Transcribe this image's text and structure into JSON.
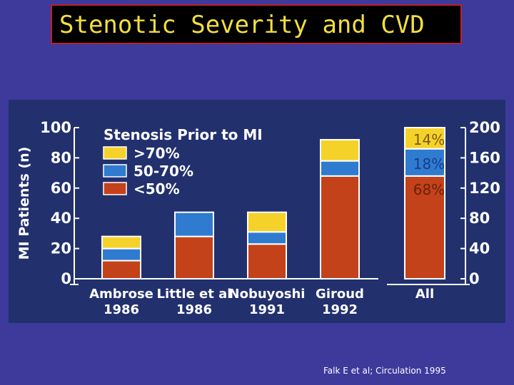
{
  "slide": {
    "title": "Stenotic Severity and CVD",
    "citation": "Falk E et al;  Circulation 1995"
  },
  "colors": {
    "background": "#3d3a9c",
    "title_text": "#f2df3e",
    "title_border": "#c0202c",
    "panel": "#22306e",
    "severe": "#f5d22a",
    "moderate": "#2f7bd0",
    "mild": "#c4421a"
  },
  "chart_data": {
    "type": "bar",
    "stacked": true,
    "ylabel": "MI Patients (n)",
    "ylim": [
      0,
      100
    ],
    "yticks": [
      "0",
      "20",
      "40",
      "60",
      "80",
      "100"
    ],
    "y2lim": [
      0,
      200
    ],
    "y2ticks": [
      "0",
      "40",
      "80",
      "120",
      "160",
      "200"
    ],
    "legend_title": "Stenosis Prior to MI",
    "legend_placement": "top-left",
    "categories": [
      [
        "Ambrose",
        "1986"
      ],
      [
        "Little et al",
        "1986"
      ],
      [
        "Nobuyoshi",
        "1991"
      ],
      [
        "Giroud",
        "1992"
      ]
    ],
    "series": [
      {
        "name": "<50%",
        "color": "#c4421a",
        "values": [
          12,
          28,
          23,
          68
        ]
      },
      {
        "name": "50-70%",
        "color": "#2f7bd0",
        "values": [
          8,
          16,
          8,
          10
        ]
      },
      {
        "name": ">70%",
        "color": "#f5d22a",
        "values": [
          8,
          0,
          13,
          14
        ]
      }
    ],
    "all_bar": {
      "label": "All",
      "axis": "right",
      "values": [
        136,
        36,
        28
      ],
      "percent_labels": [
        "68%",
        "18%",
        "14%"
      ]
    }
  }
}
